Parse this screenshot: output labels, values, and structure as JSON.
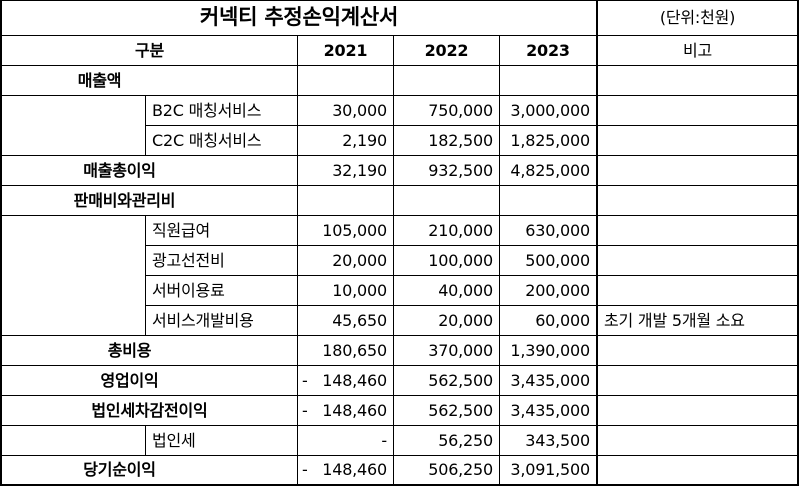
{
  "title": "커넥티 추정손익계산서",
  "unit": "(단위:천원)",
  "header": {
    "category": "구분",
    "years": [
      "2021",
      "2022",
      "2023"
    ],
    "note": "비고"
  },
  "rows": [
    {
      "label": "매출액",
      "values": [
        "",
        "",
        ""
      ],
      "note": ""
    },
    {
      "label": "B2C 매칭서비스",
      "values": [
        "30,000",
        "750,000",
        "3,000,000"
      ],
      "note": ""
    },
    {
      "label": "C2C 매칭서비스",
      "values": [
        "2,190",
        "182,500",
        "1,825,000"
      ],
      "note": ""
    },
    {
      "label": "매출총이익",
      "values": [
        "32,190",
        "932,500",
        "4,825,000"
      ],
      "note": ""
    },
    {
      "label": "판매비와관리비",
      "values": [
        "",
        "",
        ""
      ],
      "note": ""
    },
    {
      "label": "직원급여",
      "values": [
        "105,000",
        "210,000",
        "630,000"
      ],
      "note": ""
    },
    {
      "label": "광고선전비",
      "values": [
        "20,000",
        "100,000",
        "500,000"
      ],
      "note": ""
    },
    {
      "label": "서버이용료",
      "values": [
        "10,000",
        "40,000",
        "200,000"
      ],
      "note": ""
    },
    {
      "label": "서비스개발비용",
      "values": [
        "45,650",
        "20,000",
        "60,000"
      ],
      "note": "초기 개발 5개월 소요"
    },
    {
      "label": "총비용",
      "values": [
        "180,650",
        "370,000",
        "1,390,000"
      ],
      "note": ""
    },
    {
      "label": "영업이익",
      "values": [
        "148,460",
        "562,500",
        "3,435,000"
      ],
      "neg2021": "-",
      "note": ""
    },
    {
      "label": "법인세차감전이익",
      "values": [
        "148,460",
        "562,500",
        "3,435,000"
      ],
      "neg2021": "-",
      "note": ""
    },
    {
      "label": "법인세",
      "values": [
        "-",
        "56,250",
        "343,500"
      ],
      "note": ""
    },
    {
      "label": "당기순이익",
      "values": [
        "148,460",
        "506,250",
        "3,091,500"
      ],
      "neg2021": "-",
      "note": ""
    }
  ]
}
